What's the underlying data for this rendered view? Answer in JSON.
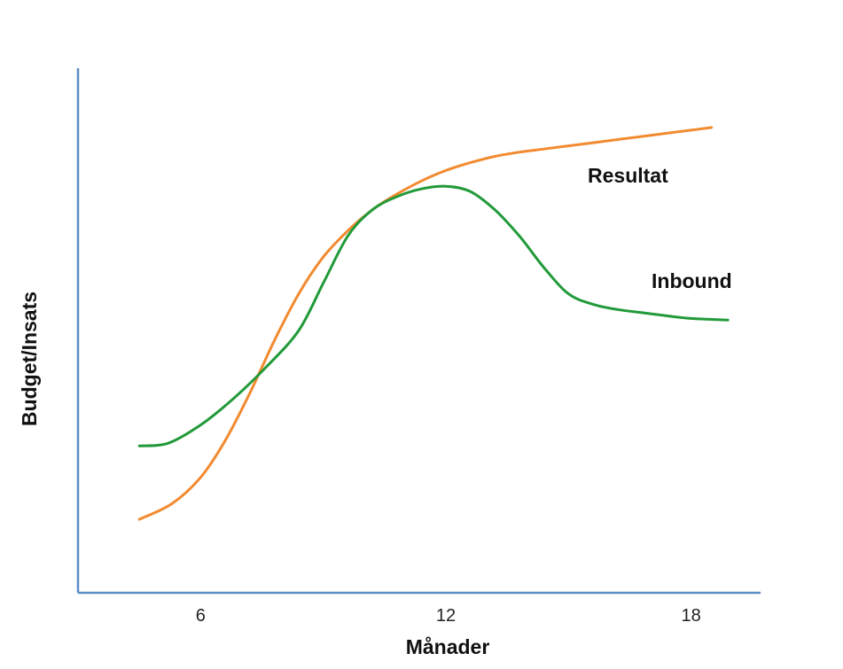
{
  "chart_data": {
    "type": "line",
    "title": "",
    "xlabel": "Månader",
    "ylabel": "Budget/Insats",
    "xlim": [
      3,
      19.7
    ],
    "ylim": [
      0,
      100
    ],
    "xticks": [
      6,
      12,
      18
    ],
    "xtick_labels": [
      "6",
      "12",
      "18"
    ],
    "grid": false,
    "legend": "none",
    "axis_color": "#5B8DC7",
    "series": [
      {
        "name": "Resultat",
        "color": "#F28A30",
        "x": [
          4.5,
          5.3,
          6.0,
          6.6,
          7.2,
          7.8,
          8.4,
          9.0,
          9.6,
          10.2,
          10.8,
          11.4,
          12.0,
          12.6,
          13.2,
          13.8,
          14.4,
          15.0,
          15.6,
          16.2,
          16.8,
          17.4,
          18.0,
          18.5
        ],
        "values": [
          14,
          17,
          22,
          29,
          38,
          48,
          57,
          64,
          69,
          73,
          76,
          78.5,
          80.5,
          82,
          83.2,
          84,
          84.6,
          85.2,
          85.8,
          86.4,
          87,
          87.6,
          88.2,
          88.7
        ]
      },
      {
        "name": "Inbound",
        "color": "#229A3A",
        "x": [
          4.5,
          5.2,
          6.0,
          6.8,
          7.6,
          8.4,
          9.0,
          9.6,
          10.2,
          10.8,
          11.4,
          12.0,
          12.6,
          13.2,
          13.8,
          14.4,
          15.0,
          15.6,
          16.2,
          16.8,
          17.4,
          18.0,
          18.9
        ],
        "values": [
          28,
          28.5,
          32,
          37,
          43,
          50,
          59,
          68,
          73,
          75.5,
          77,
          77.5,
          76.5,
          73,
          68,
          62,
          57,
          55,
          54,
          53.4,
          52.8,
          52.3,
          52
        ]
      }
    ]
  }
}
